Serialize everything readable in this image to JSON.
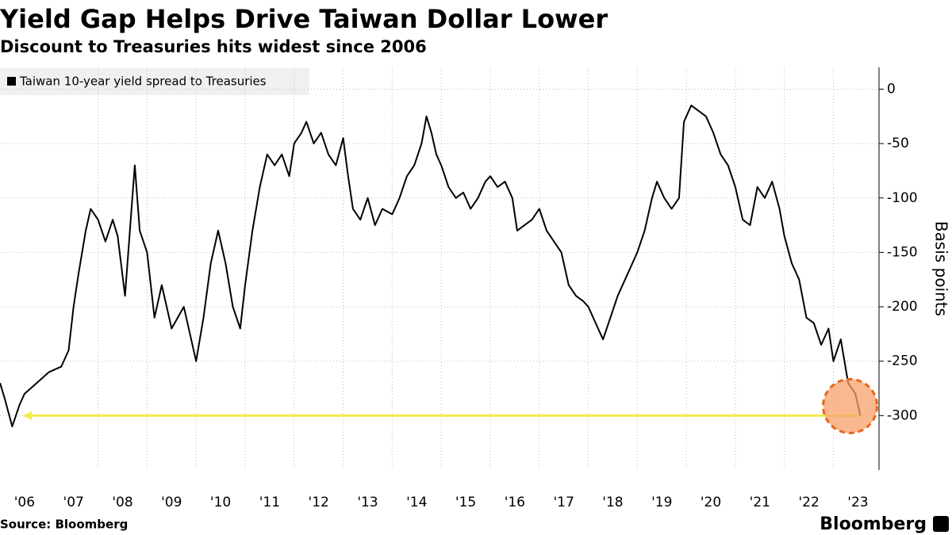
{
  "chart_data": {
    "type": "line",
    "title": "Yield Gap Helps Drive Taiwan Dollar Lower",
    "subtitle": "Discount to Treasuries hits widest since 2006",
    "y_axis_label": "Basis points",
    "source": "Source: Bloomberg",
    "brand": "Bloomberg",
    "xlim": [
      2006,
      2023.93
    ],
    "ylim": [
      -350,
      20
    ],
    "yticks": [
      0,
      -50,
      -100,
      -150,
      -200,
      -250,
      -300
    ],
    "xticks": [
      {
        "value": 2006,
        "label": "'06"
      },
      {
        "value": 2007,
        "label": "'07"
      },
      {
        "value": 2008,
        "label": "'08"
      },
      {
        "value": 2009,
        "label": "'09"
      },
      {
        "value": 2010,
        "label": "'10"
      },
      {
        "value": 2011,
        "label": "'11"
      },
      {
        "value": 2012,
        "label": "'12"
      },
      {
        "value": 2013,
        "label": "'13"
      },
      {
        "value": 2014,
        "label": "'14"
      },
      {
        "value": 2015,
        "label": "'15"
      },
      {
        "value": 2016,
        "label": "'16"
      },
      {
        "value": 2017,
        "label": "'17"
      },
      {
        "value": 2018,
        "label": "'18"
      },
      {
        "value": 2019,
        "label": "'19"
      },
      {
        "value": 2020,
        "label": "'20"
      },
      {
        "value": 2021,
        "label": "'21"
      },
      {
        "value": 2022,
        "label": "'22"
      },
      {
        "value": 2023,
        "label": "'23"
      }
    ],
    "grid": true,
    "reference_line": {
      "value": -300,
      "color": "#f5e94a"
    },
    "highlight_color": "#f7a06a",
    "x": [
      2006.0,
      2006.1,
      2006.25,
      2006.4,
      2006.5,
      2006.75,
      2007.0,
      2007.25,
      2007.4,
      2007.5,
      2007.6,
      2007.75,
      2007.85,
      2008.0,
      2008.15,
      2008.3,
      2008.4,
      2008.55,
      2008.7,
      2008.75,
      2008.85,
      2009.0,
      2009.15,
      2009.3,
      2009.5,
      2009.75,
      2009.9,
      2010.0,
      2010.15,
      2010.3,
      2010.45,
      2010.6,
      2010.75,
      2010.9,
      2011.0,
      2011.15,
      2011.3,
      2011.45,
      2011.6,
      2011.75,
      2011.9,
      2012.0,
      2012.15,
      2012.25,
      2012.4,
      2012.55,
      2012.7,
      2012.85,
      2013.0,
      2013.1,
      2013.2,
      2013.35,
      2013.5,
      2013.65,
      2013.8,
      2014.0,
      2014.15,
      2014.3,
      2014.45,
      2014.6,
      2014.7,
      2014.8,
      2014.9,
      2015.0,
      2015.15,
      2015.3,
      2015.45,
      2015.6,
      2015.75,
      2015.9,
      2016.0,
      2016.15,
      2016.3,
      2016.45,
      2016.55,
      2016.7,
      2016.85,
      2017.0,
      2017.15,
      2017.3,
      2017.45,
      2017.6,
      2017.75,
      2017.9,
      2018.0,
      2018.15,
      2018.3,
      2018.45,
      2018.6,
      2018.75,
      2018.9,
      2019.0,
      2019.15,
      2019.3,
      2019.4,
      2019.55,
      2019.7,
      2019.85,
      2019.95,
      2020.1,
      2020.25,
      2020.4,
      2020.55,
      2020.7,
      2020.85,
      2021.0,
      2021.15,
      2021.3,
      2021.45,
      2021.6,
      2021.75,
      2021.9,
      2022.0,
      2022.15,
      2022.3,
      2022.45,
      2022.6,
      2022.75,
      2022.9,
      2023.0,
      2023.15,
      2023.3,
      2023.45,
      2023.55
    ],
    "series": [
      {
        "name": "Taiwan 10-year yield spread to Treasuries",
        "color": "#000000",
        "values": [
          -270,
          -285,
          -310,
          -290,
          -280,
          -270,
          -260,
          -255,
          -240,
          -200,
          -170,
          -130,
          -110,
          -120,
          -140,
          -120,
          -135,
          -190,
          -100,
          -70,
          -130,
          -150,
          -210,
          -180,
          -220,
          -200,
          -230,
          -250,
          -210,
          -160,
          -130,
          -160,
          -200,
          -220,
          -180,
          -130,
          -90,
          -60,
          -70,
          -60,
          -80,
          -50,
          -40,
          -30,
          -50,
          -40,
          -60,
          -70,
          -45,
          -80,
          -110,
          -120,
          -100,
          -125,
          -110,
          -115,
          -100,
          -80,
          -70,
          -50,
          -25,
          -40,
          -60,
          -70,
          -90,
          -100,
          -95,
          -110,
          -100,
          -85,
          -80,
          -90,
          -85,
          -100,
          -130,
          -125,
          -120,
          -110,
          -130,
          -140,
          -150,
          -180,
          -190,
          -195,
          -200,
          -215,
          -230,
          -210,
          -190,
          -175,
          -160,
          -150,
          -130,
          -100,
          -85,
          -100,
          -110,
          -100,
          -30,
          -15,
          -20,
          -25,
          -40,
          -60,
          -70,
          -90,
          -120,
          -125,
          -90,
          -100,
          -85,
          -110,
          -135,
          -160,
          -175,
          -210,
          -215,
          -235,
          -220,
          -250,
          -230,
          -270,
          -280,
          -300
        ]
      }
    ]
  }
}
